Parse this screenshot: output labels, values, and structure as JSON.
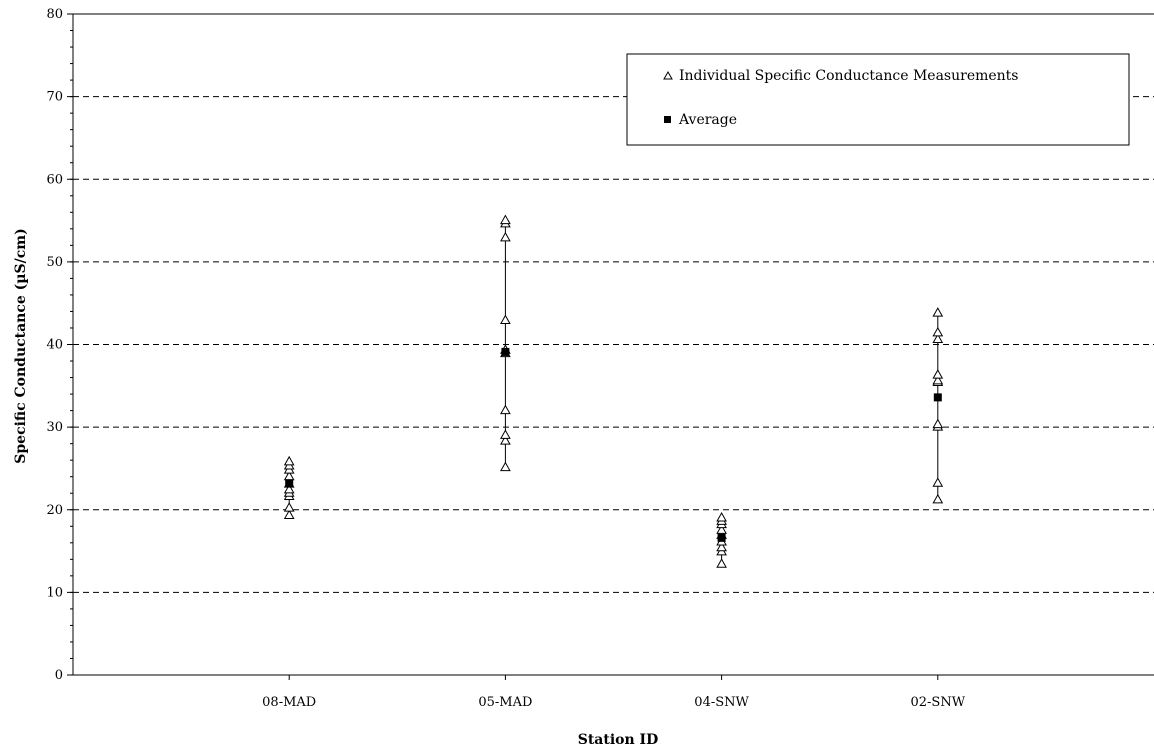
{
  "chart_data": {
    "type": "scatter",
    "title": "",
    "xlabel": "Station ID",
    "ylabel": "Specific Conductance (µS/cm)",
    "categories": [
      "08-MAD",
      "05-MAD",
      "04-SNW",
      "02-SNW"
    ],
    "ylim": [
      0,
      80
    ],
    "y_major_ticks": [
      0,
      10,
      20,
      30,
      40,
      50,
      60,
      70,
      80
    ],
    "y_minor_step": 2,
    "grid": "dashed horizontal at major ticks",
    "legend_position": "top-right",
    "series": [
      {
        "name": "Individual Specific Conductance Measurements",
        "marker": "open-triangle",
        "values": [
          [
            19.3,
            20.2,
            21.6,
            22.0,
            22.4,
            23.1,
            24.0,
            24.8,
            25.3,
            25.8
          ],
          [
            25.1,
            28.3,
            29.0,
            32.0,
            38.9,
            39.3,
            42.9,
            52.9,
            54.6,
            55.0
          ],
          [
            13.4,
            14.9,
            15.4,
            16.1,
            16.9,
            17.5,
            18.2,
            18.6,
            19.0
          ],
          [
            21.2,
            23.2,
            30.0,
            30.3,
            35.4,
            35.6,
            36.3,
            40.6,
            41.4,
            43.8
          ]
        ]
      },
      {
        "name": "Average",
        "marker": "filled-square",
        "values": [
          23.2,
          39.1,
          16.6,
          33.6
        ]
      }
    ],
    "range_lines": [
      [
        19.3,
        25.8
      ],
      [
        25.1,
        55.0
      ],
      [
        13.4,
        19.0
      ],
      [
        21.2,
        43.8
      ]
    ]
  },
  "colors": {
    "marker": "#000000",
    "grid": "#000000",
    "background": "#ffffff"
  }
}
